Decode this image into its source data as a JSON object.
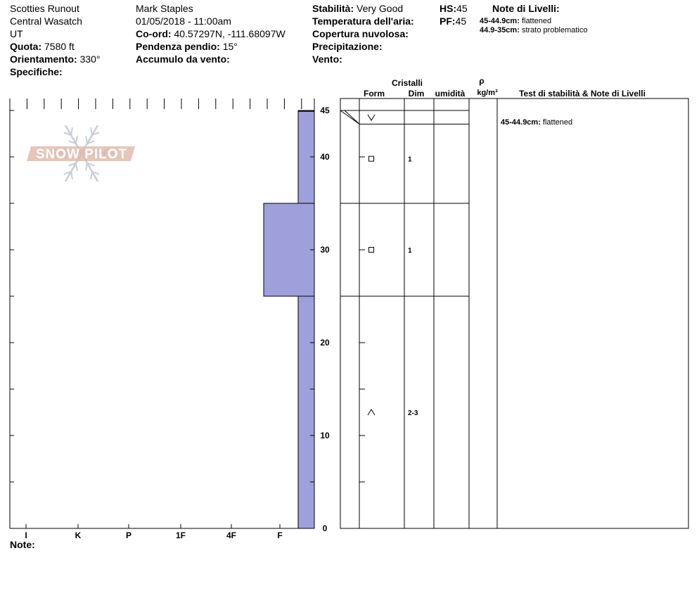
{
  "header": {
    "location": "Scotties Runout",
    "range": "Central Wasatch",
    "state": "UT",
    "elevation_label": "Quota:",
    "elevation_value": "7580 ft",
    "aspect_label": "Orientamento:",
    "aspect_value": "330°",
    "specifics_label": "Specifiche:",
    "observer": "Mark Staples",
    "datetime": "01/05/2018 - 11:00am",
    "coord_label": "Co-ord:",
    "coord_value": "40.57297N, -111.68097W",
    "slope_label": "Pendenza pendio:",
    "slope_value": "15°",
    "wind_loading_label": "Accumulo da vento:",
    "stability_label": "Stabilità:",
    "stability_value": "Very Good",
    "air_temp_label": "Temperatura dell'aria:",
    "sky_label": "Copertura nuvolosa:",
    "precip_label": "Precipitazione:",
    "wind_label": "Vento:",
    "hs_label": "HS:",
    "hs_value": "45",
    "pf_label": "PF:",
    "pf_value": "45",
    "layer_notes_title": "Note di Livelli:",
    "layer_notes": [
      {
        "range": "45-44.9cm:",
        "text": "flattened"
      },
      {
        "range": "44.9-35cm:",
        "text": "strato problematico"
      }
    ]
  },
  "logo_text": "SNOW PILOT",
  "notes_label": "Note:",
  "chart_data": {
    "type": "bar",
    "title": "",
    "xlabel": "",
    "ylabel": "",
    "hardness_scale": [
      "I",
      "K",
      "P",
      "1F",
      "4F",
      "F"
    ],
    "depth_ticks": [
      "0",
      "10",
      "20",
      "30",
      "40",
      "45"
    ],
    "ylim": [
      0,
      45
    ],
    "hardness_layers": [
      {
        "bottom": 44.9,
        "top": 45,
        "hardness": "F"
      },
      {
        "bottom": 35,
        "top": 44.9,
        "hardness": "F"
      },
      {
        "bottom": 25,
        "top": 35,
        "hardness": "F+"
      },
      {
        "bottom": 0,
        "top": 25,
        "hardness": "F"
      }
    ],
    "grid_headers": {
      "crystals": "Cristalli",
      "form": "Form",
      "size": "Dim",
      "moisture": "umidità",
      "density_symbol": "ρ",
      "density_unit": "kg/m³",
      "stability_notes": "Test di stabilità & Note di Livelli"
    },
    "layer_boundaries": [
      44.9,
      35,
      25
    ],
    "crystal_rows": [
      {
        "depth": 44.3,
        "form_symbol": "V",
        "size": ""
      },
      {
        "depth": 39.8,
        "form_symbol": "□",
        "size": "1"
      },
      {
        "depth": 30,
        "form_symbol": "□",
        "size": "1"
      },
      {
        "depth": 12.5,
        "form_symbol": "^",
        "size": "2-3"
      }
    ],
    "stability_notes": [
      {
        "depth": 43.5,
        "range": "45-44.9cm:",
        "text": "flattened"
      }
    ],
    "colors": {
      "layer_fill": "#9f9fdb",
      "layer_top": "#8b1a4a",
      "logo": "#e0b8a8",
      "snowflake": "#c8cdd6"
    }
  }
}
